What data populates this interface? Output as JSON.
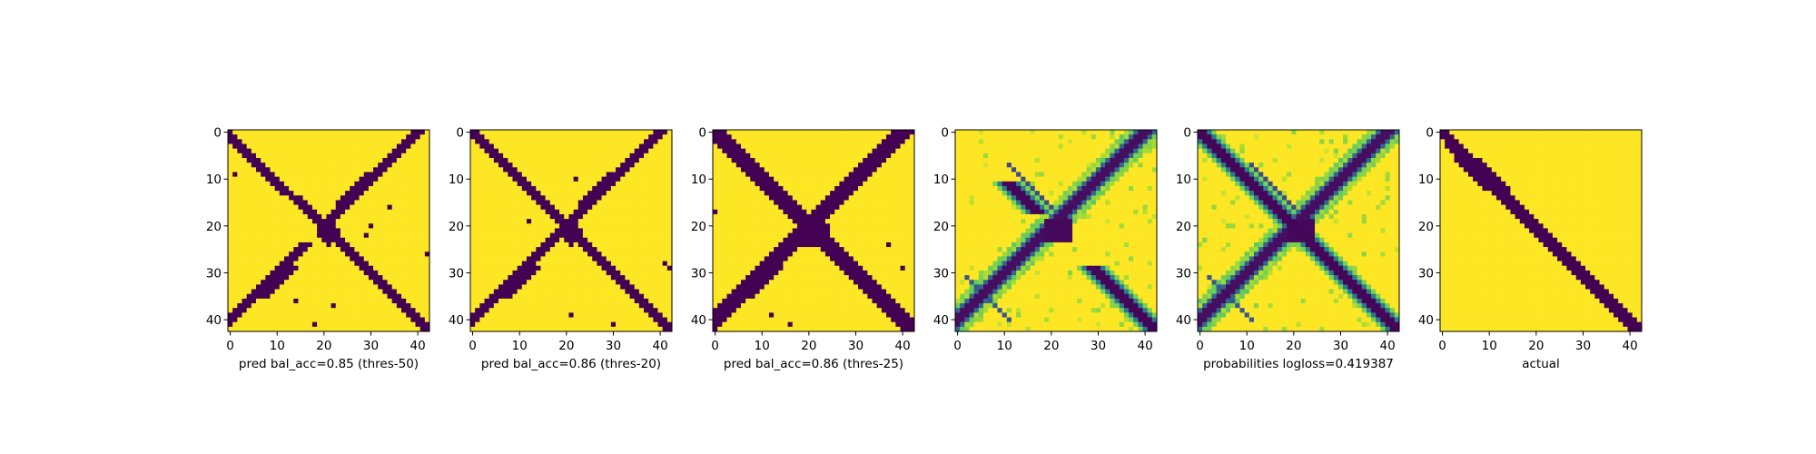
{
  "chart_data": [
    {
      "type": "heatmap",
      "xlabel": "pred bal_acc=0.85 (thres-50)",
      "ylabel": "",
      "grid_size": 43,
      "xticks": [
        0,
        10,
        20,
        30,
        40
      ],
      "yticks": [
        0,
        10,
        20,
        30,
        40
      ],
      "xlim": [
        -0.5,
        42.5
      ],
      "ylim": [
        42.5,
        -0.5
      ],
      "value_range": [
        0,
        1
      ],
      "colormap": "viridis",
      "pattern": "binary mask: main diagonal band (~2-3 cells wide) from (0,0) to (42,42) plus anti-diagonal band from top-right to bottom-left with gaps; scattered isolated cells",
      "grid_on": false
    },
    {
      "type": "heatmap",
      "xlabel": "pred bal_acc=0.86 (thres-20)",
      "ylabel": "",
      "grid_size": 43,
      "xticks": [
        0,
        10,
        20,
        30,
        40
      ],
      "yticks": [
        0,
        10,
        20,
        30,
        40
      ],
      "xlim": [
        -0.5,
        42.5
      ],
      "ylim": [
        42.5,
        -0.5
      ],
      "value_range": [
        0,
        1
      ],
      "colormap": "viridis",
      "pattern": "binary mask: main diagonal band and anti-diagonal band forming an X, blob at center (~22,21)",
      "grid_on": false
    },
    {
      "type": "heatmap",
      "xlabel": "pred bal_acc=0.86 (thres-25)",
      "ylabel": "",
      "grid_size": 43,
      "xticks": [
        0,
        10,
        20,
        30,
        40
      ],
      "yticks": [
        0,
        10,
        20,
        30,
        40
      ],
      "xlim": [
        -0.5,
        42.5
      ],
      "ylim": [
        42.5,
        -0.5
      ],
      "value_range": [
        0,
        1
      ],
      "colormap": "viridis",
      "pattern": "binary mask: thick X shape, main diagonal and anti-diagonal bands ~3-4 cells wide with large center blob",
      "grid_on": false
    },
    {
      "type": "heatmap",
      "xlabel": "",
      "ylabel": "",
      "grid_size": 43,
      "xticks": [
        0,
        10,
        20,
        30,
        40
      ],
      "yticks": [
        0,
        10,
        20,
        30,
        40
      ],
      "xlim": [
        -0.5,
        42.5
      ],
      "ylim": [
        42.5,
        -0.5
      ],
      "value_range": [
        0,
        1
      ],
      "colormap": "viridis",
      "pattern": "continuous probabilities: dark bands with teal/green halos along anti-diagonal and partial main diagonal segments",
      "grid_on": false
    },
    {
      "type": "heatmap",
      "xlabel": "probabilities logloss=0.419387",
      "ylabel": "",
      "grid_size": 43,
      "xticks": [
        0,
        10,
        20,
        30,
        40
      ],
      "yticks": [
        0,
        10,
        20,
        30,
        40
      ],
      "xlim": [
        -0.5,
        42.5
      ],
      "ylim": [
        42.5,
        -0.5
      ],
      "value_range": [
        0,
        1
      ],
      "colormap": "viridis",
      "pattern": "continuous probabilities: dark full main diagonal plus anti-diagonal with teal/green halos",
      "grid_on": false
    },
    {
      "type": "heatmap",
      "xlabel": "actual",
      "ylabel": "",
      "grid_size": 43,
      "xticks": [
        0,
        10,
        20,
        30,
        40
      ],
      "yticks": [
        0,
        10,
        20,
        30,
        40
      ],
      "xlim": [
        -0.5,
        42.5
      ],
      "ylim": [
        42.5,
        -0.5
      ],
      "value_range": [
        0,
        1
      ],
      "colormap": "viridis",
      "pattern": "binary mask: main diagonal band only (~3 cells wide) from (0,0) to (42,42), small widening near (10,9)",
      "grid_on": false
    }
  ]
}
